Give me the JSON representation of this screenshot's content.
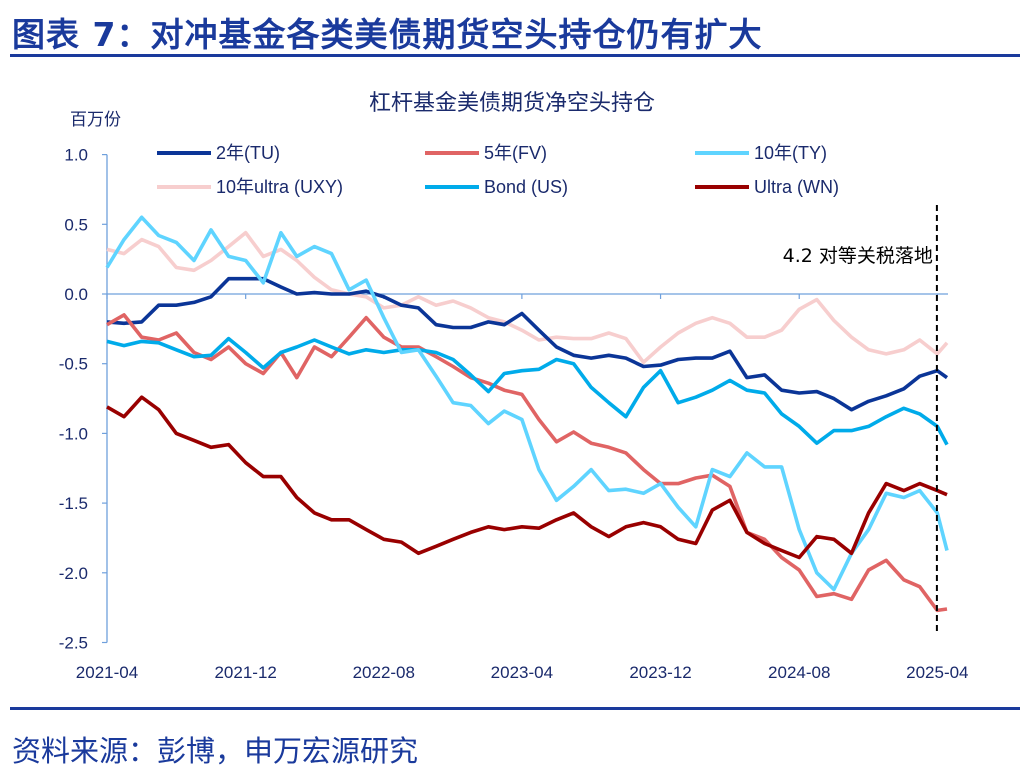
{
  "header": {
    "title": "图表 7：对冲基金各类美债期货空头持仓仍有扩大"
  },
  "source": "资料来源：彭博，申万宏源研究",
  "chart_data": {
    "type": "line",
    "title": "杠杆基金美债期货净空头持仓",
    "ylabel": "百万份",
    "xlabel": "",
    "ylim": [
      -2.5,
      1.0
    ],
    "yticks": [
      "1.0",
      "0.5",
      "0.0",
      "-0.5",
      "-1.0",
      "-1.5",
      "-2.0",
      "-2.5"
    ],
    "xticks": [
      "2021-04",
      "2021-12",
      "2022-08",
      "2023-04",
      "2023-12",
      "2024-08",
      "2025-04"
    ],
    "grid": false,
    "legend": "top",
    "annotation": {
      "text": "4.2 对等关税落地",
      "x": "2025-04-02"
    },
    "x": [
      "2021-04-01",
      "2021-05-01",
      "2021-06-01",
      "2021-07-01",
      "2021-08-01",
      "2021-09-01",
      "2021-10-01",
      "2021-11-01",
      "2021-12-01",
      "2022-01-01",
      "2022-02-01",
      "2022-03-01",
      "2022-04-01",
      "2022-05-01",
      "2022-06-01",
      "2022-07-01",
      "2022-08-01",
      "2022-09-01",
      "2022-10-01",
      "2022-11-01",
      "2022-12-01",
      "2023-01-01",
      "2023-02-01",
      "2023-03-01",
      "2023-04-01",
      "2023-05-01",
      "2023-06-01",
      "2023-07-01",
      "2023-08-01",
      "2023-09-01",
      "2023-10-01",
      "2023-11-01",
      "2023-12-01",
      "2024-01-01",
      "2024-02-01",
      "2024-03-01",
      "2024-04-01",
      "2024-05-01",
      "2024-06-01",
      "2024-07-01",
      "2024-08-01",
      "2024-09-01",
      "2024-10-01",
      "2024-11-01",
      "2024-12-01",
      "2025-01-01",
      "2025-02-01",
      "2025-03-01",
      "2025-04-01",
      "2025-04-18"
    ],
    "series": [
      {
        "name": "2年(TU)",
        "color": "#0b3597",
        "values": [
          -0.2,
          -0.21,
          -0.2,
          -0.08,
          -0.08,
          -0.06,
          -0.02,
          0.11,
          0.11,
          0.11,
          0.05,
          0.0,
          0.01,
          0.0,
          0.0,
          0.02,
          -0.02,
          -0.08,
          -0.1,
          -0.22,
          -0.24,
          -0.24,
          -0.2,
          -0.22,
          -0.14,
          -0.26,
          -0.38,
          -0.44,
          -0.46,
          -0.44,
          -0.46,
          -0.52,
          -0.51,
          -0.47,
          -0.46,
          -0.46,
          -0.41,
          -0.6,
          -0.58,
          -0.69,
          -0.71,
          -0.7,
          -0.75,
          -0.83,
          -0.77,
          -0.73,
          -0.68,
          -0.59,
          -0.55,
          -0.6
        ]
      },
      {
        "name": "5年(FV)",
        "color": "#e06464",
        "values": [
          -0.22,
          -0.15,
          -0.31,
          -0.33,
          -0.28,
          -0.42,
          -0.47,
          -0.38,
          -0.5,
          -0.57,
          -0.42,
          -0.6,
          -0.38,
          -0.45,
          -0.31,
          -0.17,
          -0.31,
          -0.38,
          -0.38,
          -0.45,
          -0.52,
          -0.6,
          -0.64,
          -0.69,
          -0.72,
          -0.9,
          -1.06,
          -0.99,
          -1.07,
          -1.1,
          -1.14,
          -1.26,
          -1.36,
          -1.36,
          -1.32,
          -1.3,
          -1.38,
          -1.71,
          -1.76,
          -1.89,
          -1.98,
          -2.17,
          -2.15,
          -2.19,
          -1.98,
          -1.91,
          -2.05,
          -2.1,
          -2.27,
          -2.26
        ]
      },
      {
        "name": "10年(TY)",
        "color": "#5fd4ff",
        "values": [
          0.19,
          0.39,
          0.55,
          0.42,
          0.37,
          0.24,
          0.46,
          0.27,
          0.24,
          0.08,
          0.44,
          0.27,
          0.34,
          0.29,
          0.03,
          0.1,
          -0.17,
          -0.42,
          -0.4,
          -0.59,
          -0.78,
          -0.8,
          -0.93,
          -0.84,
          -0.9,
          -1.26,
          -1.48,
          -1.38,
          -1.26,
          -1.41,
          -1.4,
          -1.43,
          -1.36,
          -1.53,
          -1.67,
          -1.26,
          -1.31,
          -1.14,
          -1.24,
          -1.24,
          -1.69,
          -2.0,
          -2.12,
          -1.86,
          -1.69,
          -1.43,
          -1.46,
          -1.41,
          -1.57,
          -1.84
        ]
      },
      {
        "name": "10年ultra (UXY)",
        "color": "#f7cece",
        "values": [
          0.32,
          0.29,
          0.39,
          0.34,
          0.19,
          0.17,
          0.24,
          0.34,
          0.44,
          0.27,
          0.32,
          0.24,
          0.12,
          0.03,
          0.0,
          -0.02,
          -0.1,
          -0.08,
          -0.02,
          -0.08,
          -0.05,
          -0.1,
          -0.17,
          -0.2,
          -0.26,
          -0.33,
          -0.31,
          -0.32,
          -0.32,
          -0.28,
          -0.32,
          -0.49,
          -0.38,
          -0.28,
          -0.21,
          -0.17,
          -0.21,
          -0.31,
          -0.31,
          -0.26,
          -0.11,
          -0.04,
          -0.19,
          -0.31,
          -0.4,
          -0.43,
          -0.4,
          -0.33,
          -0.43,
          -0.35
        ]
      },
      {
        "name": "Bond (US)",
        "color": "#00abea",
        "values": [
          -0.34,
          -0.37,
          -0.34,
          -0.35,
          -0.4,
          -0.45,
          -0.44,
          -0.32,
          -0.42,
          -0.53,
          -0.42,
          -0.38,
          -0.33,
          -0.38,
          -0.43,
          -0.4,
          -0.42,
          -0.4,
          -0.4,
          -0.42,
          -0.47,
          -0.58,
          -0.7,
          -0.57,
          -0.55,
          -0.54,
          -0.47,
          -0.5,
          -0.67,
          -0.78,
          -0.88,
          -0.67,
          -0.55,
          -0.78,
          -0.74,
          -0.69,
          -0.62,
          -0.69,
          -0.71,
          -0.86,
          -0.95,
          -1.07,
          -0.98,
          -0.98,
          -0.95,
          -0.88,
          -0.82,
          -0.86,
          -0.95,
          -1.08
        ]
      },
      {
        "name": "Ultra (WN)",
        "color": "#990000",
        "values": [
          -0.81,
          -0.88,
          -0.74,
          -0.83,
          -1.0,
          -1.05,
          -1.1,
          -1.08,
          -1.21,
          -1.31,
          -1.31,
          -1.46,
          -1.57,
          -1.62,
          -1.62,
          -1.69,
          -1.76,
          -1.78,
          -1.86,
          -1.81,
          -1.76,
          -1.71,
          -1.67,
          -1.69,
          -1.67,
          -1.68,
          -1.62,
          -1.57,
          -1.67,
          -1.74,
          -1.67,
          -1.64,
          -1.67,
          -1.76,
          -1.79,
          -1.55,
          -1.48,
          -1.71,
          -1.79,
          -1.84,
          -1.89,
          -1.74,
          -1.76,
          -1.86,
          -1.57,
          -1.36,
          -1.41,
          -1.36,
          -1.41,
          -1.44
        ]
      }
    ]
  }
}
